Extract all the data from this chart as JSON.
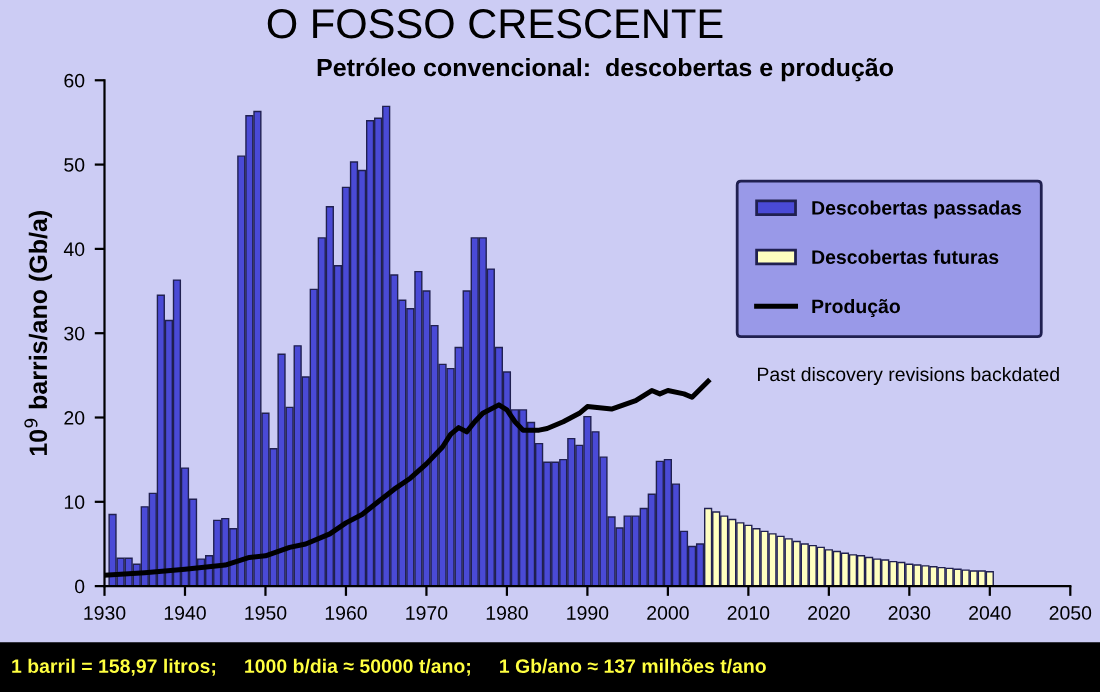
{
  "chart_data": {
    "type": "bar",
    "title": "O FOSSO CRESCENTE",
    "subtitle": "Petróleo convencional:  descobertas e produção",
    "ylabel": "10$^{9}$ barris/ano (Gb/a)",
    "xlim": [
      1930,
      2050
    ],
    "xticks": [
      1930,
      1940,
      1950,
      1960,
      1970,
      1980,
      1990,
      2000,
      2010,
      2020,
      2030,
      2040,
      2050
    ],
    "ylim": [
      0,
      60
    ],
    "yticks": [
      0,
      10,
      20,
      30,
      40,
      50,
      60
    ],
    "grid": false,
    "legend": "top right",
    "series": [
      {
        "name": "Descobertas passadas",
        "color": "#4a4ad6",
        "x": [
          1931,
          1932,
          1933,
          1934,
          1935,
          1936,
          1937,
          1938,
          1939,
          1940,
          1941,
          1942,
          1943,
          1944,
          1945,
          1946,
          1947,
          1948,
          1949,
          1950,
          1951,
          1952,
          1953,
          1954,
          1955,
          1956,
          1957,
          1958,
          1959,
          1960,
          1961,
          1962,
          1963,
          1964,
          1965,
          1966,
          1967,
          1968,
          1969,
          1970,
          1971,
          1972,
          1973,
          1974,
          1975,
          1976,
          1977,
          1978,
          1979,
          1980,
          1981,
          1982,
          1983,
          1984,
          1985,
          1986,
          1987,
          1988,
          1989,
          1990,
          1991,
          1992,
          1993,
          1994,
          1995,
          1996,
          1997,
          1998,
          1999,
          2000,
          2001,
          2002,
          2003,
          2004
        ],
        "values": [
          8.5,
          3.3,
          3.3,
          2.6,
          9.4,
          11,
          34.5,
          31.5,
          36.3,
          14,
          10.3,
          3.2,
          3.6,
          7.8,
          8,
          6.8,
          51,
          55.8,
          56.3,
          20.5,
          16.3,
          27.5,
          21.2,
          28.5,
          24.8,
          35.2,
          41.3,
          45,
          38,
          47.3,
          50.3,
          49.3,
          55.2,
          55.5,
          56.9,
          36.9,
          33.9,
          32.9,
          37.3,
          35,
          30.9,
          26.3,
          25.8,
          28.3,
          35,
          41.3,
          41.3,
          37.6,
          28.3,
          25.4,
          20.9,
          20.9,
          19.4,
          16.9,
          14.7,
          14.7,
          15,
          17.5,
          16.7,
          20.1,
          18.3,
          15.3,
          8.2,
          6.9,
          8.3,
          8.3,
          9.2,
          10.9,
          14.8,
          15,
          12.1,
          6.5,
          4.7,
          5
        ]
      },
      {
        "name": "Descobertas futuras",
        "color": "#ffffc0",
        "x": [
          2005,
          2006,
          2007,
          2008,
          2009,
          2010,
          2011,
          2012,
          2013,
          2014,
          2015,
          2016,
          2017,
          2018,
          2019,
          2020,
          2021,
          2022,
          2023,
          2024,
          2025,
          2026,
          2027,
          2028,
          2029,
          2030,
          2031,
          2032,
          2033,
          2034,
          2035,
          2036,
          2037,
          2038,
          2039,
          2040
        ],
        "values": [
          9.2,
          8.8,
          8.3,
          7.9,
          7.5,
          7.2,
          6.8,
          6.5,
          6.2,
          5.9,
          5.6,
          5.3,
          5.0,
          4.8,
          4.6,
          4.3,
          4.1,
          3.9,
          3.7,
          3.6,
          3.4,
          3.2,
          3.1,
          2.9,
          2.8,
          2.6,
          2.5,
          2.4,
          2.3,
          2.2,
          2.1,
          2.0,
          1.9,
          1.8,
          1.8,
          1.7
        ]
      },
      {
        "name": "Produção",
        "type": "line",
        "color": "#000000",
        "x": [
          1930,
          1935,
          1940,
          1945,
          1948,
          1950,
          1953,
          1955,
          1958,
          1960,
          1962,
          1964,
          1966,
          1968,
          1970,
          1972,
          1973,
          1974,
          1975,
          1976,
          1977,
          1979,
          1980,
          1981,
          1982,
          1984,
          1985,
          1987,
          1989,
          1990,
          1993,
          1996,
          1998,
          1999,
          2000,
          2002,
          2003,
          2005
        ],
        "values": [
          1.3,
          1.6,
          2.0,
          2.5,
          3.4,
          3.6,
          4.6,
          5.0,
          6.2,
          7.5,
          8.5,
          10,
          11.5,
          12.8,
          14.5,
          16.5,
          18,
          18.8,
          18.3,
          19.5,
          20.5,
          21.5,
          20.9,
          19.5,
          18.5,
          18.5,
          18.7,
          19.5,
          20.5,
          21.3,
          21,
          22,
          23.2,
          22.8,
          23.2,
          22.8,
          22.4,
          24.3
        ]
      }
    ],
    "annotations": [
      "Past discovery revisions backdated",
      "1 barril = 158,97 litros;     1000 b/dia ≈ 50000 t/ano;     1 Gb/ano ≈ 137 milhões t/ano"
    ]
  }
}
